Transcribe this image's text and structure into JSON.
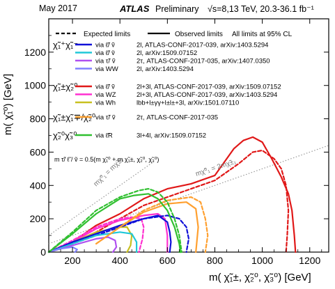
{
  "header": {
    "date": "May 2017",
    "experiment": "ATLAS",
    "status": "Preliminary",
    "energy_lumi": "√s=8,13 TeV, 20.3-36.1 fb⁻¹"
  },
  "legend": {
    "expected_label": "Expected limits",
    "observed_label": "Observed limits",
    "cl_note": "All limits at 95% CL",
    "groups": [
      {
        "label": "χ̃₁⁺χ̃₁⁻",
        "entries": [
          {
            "via": "via  ℓ̃/ ṽ",
            "text": "2l, ATLAS-CONF-2017-039, arXiv:1403.5294",
            "color": "#1010d8"
          },
          {
            "via": "via  ℓ̃/ ṽ",
            "text": "2l, arXiv:1509.07152",
            "color": "#20c8d8"
          },
          {
            "via": "via  τ̃/ ṽ",
            "text": "2τ, ATLAS-CONF-2017-035, arXiv:1407.0350",
            "color": "#b050f0"
          },
          {
            "via": "via  WW",
            "text": "2l, arXiv:1403.5294",
            "color": "#8080ff"
          }
        ]
      },
      {
        "label": "χ̃₁±χ̃₂⁰",
        "entries": [
          {
            "via": "via  ℓ̃/ ṽ",
            "text": "2l+3l, ATLAS-CONF-2017-039, arXiv:1509.07152",
            "color": "#e01818"
          },
          {
            "via": "via  WZ",
            "text": "2l+3l, ATLAS-CONF-2017-039, arXiv:1403.5294",
            "color": "#ff30d0"
          },
          {
            "via": "via  Wh",
            "text": "lbb+l±γγ+l±l±+3l, arXiv:1501.07110",
            "color": "#c8c020"
          }
        ]
      },
      {
        "label": "χ̃₁±χ̃₁∓/χ̃₂⁰",
        "entries": [
          {
            "via": "via  τ̃/ ṽ",
            "text": "2τ, ATLAS-CONF-2017-035",
            "color": "#ffa030"
          }
        ]
      },
      {
        "label": "χ̃₂⁰χ̃₃⁰",
        "entries": [
          {
            "via": "via  ℓ̃R",
            "text": "3l+4l, arXiv:1509.07152",
            "color": "#30c030"
          }
        ]
      }
    ],
    "mass_relation": "m τ̃/ ℓ̃ / ṽ = 0.5(m χ̃₁⁰ + m χ̃₁±, χ̃₂⁰, χ̃₃⁰)"
  },
  "diagonals": {
    "label_equal": "mχ̃⁰₁ = mχ̃±₁",
    "label_double": "mχ̃⁰₁ = 2mχ̃±₁"
  },
  "chart_data": {
    "type": "line",
    "title": "",
    "xlabel": "m( χ̃₁±, χ̃₂⁰, χ̃₃⁰) [GeV]",
    "ylabel": "m( χ̃₁⁰) [GeV]",
    "xlim": [
      100,
      1280
    ],
    "ylim": [
      0,
      1400
    ],
    "xticks": [
      200,
      400,
      600,
      800,
      1000,
      1200
    ],
    "yticks": [
      0,
      200,
      400,
      600,
      800,
      1000,
      1200
    ],
    "series": [
      {
        "name": "χ̃₁±χ̃₂⁰ via ℓ̃/ṽ expected",
        "color": "#e01818",
        "style": "dashed",
        "x": [
          100,
          250,
          400,
          500,
          600,
          700,
          800,
          900,
          960,
          1000,
          1050,
          1080,
          1100,
          1110,
          1105,
          1100
        ],
        "y": [
          0,
          80,
          200,
          280,
          330,
          380,
          430,
          530,
          600,
          610,
          560,
          500,
          400,
          250,
          100,
          0
        ]
      },
      {
        "name": "χ̃₁±χ̃₂⁰ via ℓ̃/ṽ observed",
        "color": "#e01818",
        "style": "solid",
        "x": [
          100,
          200,
          300,
          400,
          500,
          600,
          700,
          800,
          880,
          920,
          960,
          1000,
          1040,
          1080,
          1110,
          1125,
          1135,
          1140
        ],
        "y": [
          0,
          60,
          160,
          230,
          320,
          380,
          410,
          460,
          620,
          670,
          690,
          660,
          560,
          450,
          350,
          250,
          100,
          0
        ]
      },
      {
        "name": "χ̃₁±χ̃₂⁰ via WZ expected",
        "color": "#ff30d0",
        "style": "dashed",
        "x": [
          100,
          200,
          300,
          400,
          450,
          490,
          500,
          495,
          480
        ],
        "y": [
          0,
          70,
          150,
          200,
          210,
          200,
          150,
          80,
          0
        ]
      },
      {
        "name": "χ̃₁±χ̃₂⁰ via WZ observed",
        "color": "#ff30d0",
        "style": "solid",
        "x": [
          100,
          200,
          300,
          400,
          500,
          560,
          590,
          600,
          600
        ],
        "y": [
          0,
          60,
          140,
          190,
          220,
          230,
          200,
          100,
          0
        ]
      },
      {
        "name": "χ̃₁±χ̃₂⁰ via Wh observed",
        "color": "#c8c020",
        "style": "solid",
        "x": [
          100,
          200,
          300,
          400,
          430,
          450,
          445,
          430
        ],
        "y": [
          0,
          60,
          120,
          150,
          150,
          100,
          40,
          0
        ]
      },
      {
        "name": "χ̃₁⁺χ̃₁⁻ via ℓ̃/ṽ expected",
        "color": "#1010d8",
        "style": "dashed",
        "x": [
          100,
          200,
          300,
          400,
          500,
          600,
          650,
          680,
          690,
          680
        ],
        "y": [
          0,
          50,
          100,
          150,
          200,
          220,
          200,
          150,
          80,
          0
        ]
      },
      {
        "name": "χ̃₁⁺χ̃₁⁻ via ℓ̃/ṽ observed",
        "color": "#1010d8",
        "style": "solid",
        "x": [
          100,
          200,
          300,
          400,
          500,
          560,
          600,
          610,
          615,
          610
        ],
        "y": [
          0,
          60,
          110,
          160,
          200,
          220,
          180,
          120,
          60,
          0
        ]
      },
      {
        "name": "χ̃₁⁺χ̃₁⁻ via ℓ̃/ṽ (arXiv:1509.07152) observed",
        "color": "#20c8d8",
        "style": "solid",
        "x": [
          100,
          200,
          300,
          400,
          450,
          470,
          470
        ],
        "y": [
          0,
          50,
          100,
          120,
          110,
          60,
          0
        ]
      },
      {
        "name": "χ̃₁⁺χ̃₁⁻ via τ̃/ṽ observed",
        "color": "#b050f0",
        "style": "solid",
        "x": [
          100,
          200,
          300,
          350,
          380,
          385,
          370
        ],
        "y": [
          0,
          40,
          80,
          90,
          70,
          30,
          0
        ]
      },
      {
        "name": "χ̃₁⁺χ̃₁⁻ via WW observed",
        "color": "#8080ff",
        "style": "solid",
        "x": [
          100,
          150,
          200,
          220,
          210
        ],
        "y": [
          0,
          20,
          30,
          15,
          0
        ]
      },
      {
        "name": "χ̃₁±χ̃₁∓/χ̃₂⁰ via τ̃/ṽ expected",
        "color": "#ffa030",
        "style": "dashed",
        "x": [
          300,
          400,
          500,
          600,
          700,
          740,
          760,
          770,
          760
        ],
        "y": [
          50,
          150,
          250,
          310,
          330,
          300,
          200,
          100,
          0
        ]
      },
      {
        "name": "χ̃₁±χ̃₁∓/χ̃₂⁰ via τ̃/ṽ observed",
        "color": "#ffa030",
        "style": "solid",
        "x": [
          300,
          400,
          500,
          600,
          680,
          720,
          730,
          720
        ],
        "y": [
          50,
          150,
          240,
          290,
          300,
          260,
          150,
          0
        ]
      },
      {
        "name": "χ̃₂⁰χ̃₃⁰ via ℓ̃R expected",
        "color": "#30c030",
        "style": "dashed",
        "x": [
          100,
          200,
          300,
          400,
          480,
          520,
          560,
          600,
          630,
          650,
          660,
          650
        ],
        "y": [
          0,
          120,
          250,
          330,
          370,
          380,
          360,
          300,
          200,
          100,
          0,
          0
        ]
      },
      {
        "name": "χ̃₂⁰χ̃₃⁰ via ℓ̃R observed",
        "color": "#30c030",
        "style": "solid",
        "x": [
          100,
          200,
          300,
          400,
          460,
          520,
          560,
          600,
          630,
          650,
          655
        ],
        "y": [
          0,
          110,
          230,
          320,
          340,
          350,
          320,
          250,
          150,
          50,
          0
        ]
      }
    ],
    "reference_lines": [
      {
        "name": "mχ̃⁰₁ = mχ̃±₁",
        "style": "dotted",
        "color": "#999999",
        "x": [
          100,
          540
        ],
        "y": [
          100,
          540
        ]
      },
      {
        "name": "mχ̃⁰₁ = 2mχ̃±₁",
        "style": "dotted",
        "color": "#999999",
        "x": [
          100,
          1280
        ],
        "y": [
          50,
          640
        ]
      }
    ]
  }
}
